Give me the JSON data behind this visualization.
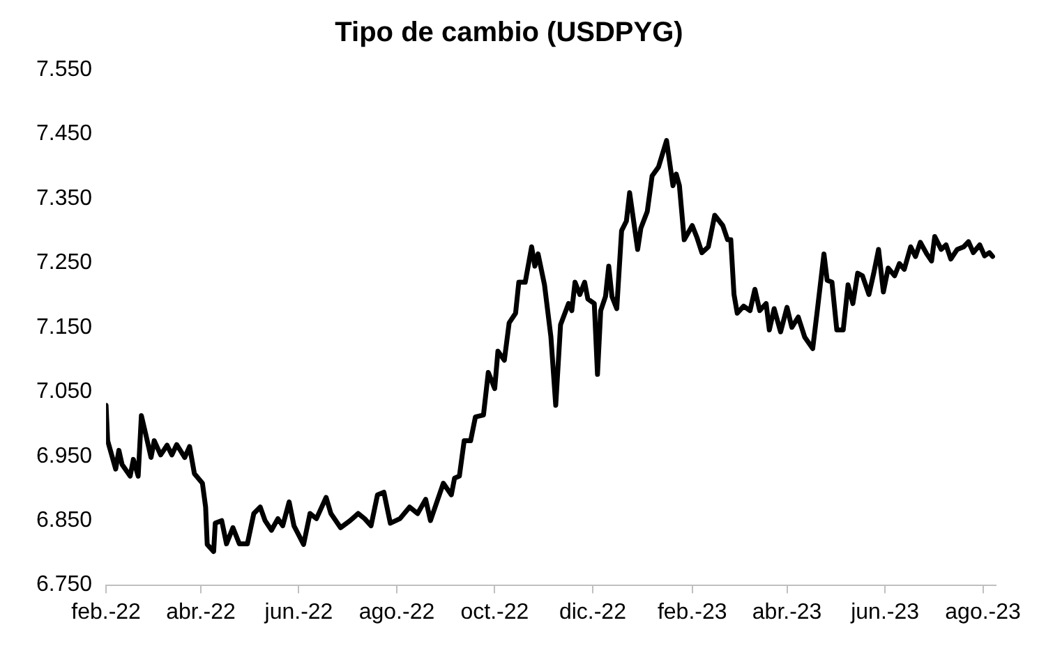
{
  "chart_data": {
    "type": "line",
    "title": "Tipo de cambio (USDPYG)",
    "x": [
      "2022-02-01",
      "2022-02-02",
      "2022-02-07",
      "2022-02-09",
      "2022-02-11",
      "2022-02-16",
      "2022-02-18",
      "2022-02-21",
      "2022-02-23",
      "2022-02-26",
      "2022-03-01",
      "2022-03-03",
      "2022-03-07",
      "2022-03-11",
      "2022-03-14",
      "2022-03-17",
      "2022-03-22",
      "2022-03-25",
      "2022-03-28",
      "2022-04-02",
      "2022-04-04",
      "2022-04-05",
      "2022-04-09",
      "2022-04-10",
      "2022-04-14",
      "2022-04-17",
      "2022-04-21",
      "2022-04-25",
      "2022-04-30",
      "2022-05-04",
      "2022-05-08",
      "2022-05-11",
      "2022-05-15",
      "2022-05-19",
      "2022-05-22",
      "2022-05-26",
      "2022-05-29",
      "2022-06-04",
      "2022-06-08",
      "2022-06-12",
      "2022-06-18",
      "2022-06-21",
      "2022-06-27",
      "2022-07-03",
      "2022-07-08",
      "2022-07-12",
      "2022-07-16",
      "2022-07-20",
      "2022-07-24",
      "2022-07-28",
      "2022-08-03",
      "2022-08-09",
      "2022-08-14",
      "2022-08-19",
      "2022-08-22",
      "2022-08-30",
      "2022-09-04",
      "2022-09-06",
      "2022-09-09",
      "2022-09-12",
      "2022-09-16",
      "2022-09-19",
      "2022-09-24",
      "2022-09-27",
      "2022-10-01",
      "2022-10-03",
      "2022-10-07",
      "2022-10-10",
      "2022-10-14",
      "2022-10-16",
      "2022-10-20",
      "2022-10-24",
      "2022-10-26",
      "2022-10-28",
      "2022-11-01",
      "2022-11-05",
      "2022-11-08",
      "2022-11-11",
      "2022-11-16",
      "2022-11-18",
      "2022-11-20",
      "2022-11-23",
      "2022-11-26",
      "2022-11-28",
      "2022-12-02",
      "2022-12-04",
      "2022-12-06",
      "2022-12-09",
      "2022-12-11",
      "2022-12-13",
      "2022-12-16",
      "2022-12-19",
      "2022-12-22",
      "2022-12-24",
      "2022-12-29",
      "2022-12-31",
      "2023-01-04",
      "2023-01-07",
      "2023-01-11",
      "2023-01-16",
      "2023-01-20",
      "2023-01-22",
      "2023-01-24",
      "2023-01-27",
      "2023-02-01",
      "2023-02-04",
      "2023-02-07",
      "2023-02-11",
      "2023-02-15",
      "2023-02-20",
      "2023-02-23",
      "2023-02-25",
      "2023-02-27",
      "2023-03-01",
      "2023-03-05",
      "2023-03-09",
      "2023-03-12",
      "2023-03-15",
      "2023-03-19",
      "2023-03-21",
      "2023-03-24",
      "2023-03-28",
      "2023-04-01",
      "2023-04-04",
      "2023-04-08",
      "2023-04-12",
      "2023-04-17",
      "2023-04-20",
      "2023-04-24",
      "2023-04-26",
      "2023-04-29",
      "2023-05-02",
      "2023-05-06",
      "2023-05-09",
      "2023-05-12",
      "2023-05-15",
      "2023-05-18",
      "2023-05-22",
      "2023-05-25",
      "2023-05-28",
      "2023-05-31",
      "2023-06-03",
      "2023-06-07",
      "2023-06-10",
      "2023-06-13",
      "2023-06-17",
      "2023-06-20",
      "2023-06-23",
      "2023-06-27",
      "2023-06-30",
      "2023-07-02",
      "2023-07-06",
      "2023-07-09",
      "2023-07-12",
      "2023-07-16",
      "2023-07-20",
      "2023-07-23",
      "2023-07-26",
      "2023-07-30",
      "2023-08-02",
      "2023-08-05",
      "2023-08-07"
    ],
    "series": [
      {
        "color": "#000000",
        "values": [
          7029,
          6974,
          6930,
          6959,
          6937,
          6919,
          6945,
          6919,
          7013,
          6981,
          6948,
          6974,
          6952,
          6967,
          6952,
          6968,
          6948,
          6965,
          6923,
          6908,
          6871,
          6813,
          6802,
          6846,
          6850,
          6814,
          6839,
          6814,
          6814,
          6861,
          6871,
          6850,
          6835,
          6853,
          6842,
          6879,
          6842,
          6813,
          6861,
          6853,
          6886,
          6861,
          6839,
          6850,
          6861,
          6853,
          6842,
          6890,
          6894,
          6846,
          6853,
          6871,
          6861,
          6883,
          6850,
          6908,
          6890,
          6916,
          6919,
          6974,
          6974,
          7011,
          7014,
          7080,
          7055,
          7113,
          7099,
          7157,
          7172,
          7220,
          7220,
          7275,
          7245,
          7264,
          7216,
          7135,
          7029,
          7154,
          7187,
          7176,
          7220,
          7201,
          7220,
          7194,
          7187,
          7077,
          7176,
          7198,
          7245,
          7198,
          7179,
          7300,
          7315,
          7359,
          7271,
          7304,
          7330,
          7385,
          7399,
          7440,
          7370,
          7388,
          7370,
          7286,
          7308,
          7289,
          7266,
          7275,
          7324,
          7308,
          7286,
          7286,
          7201,
          7172,
          7183,
          7176,
          7209,
          7176,
          7187,
          7146,
          7179,
          7143,
          7181,
          7150,
          7166,
          7135,
          7117,
          7179,
          7264,
          7223,
          7220,
          7146,
          7146,
          7216,
          7187,
          7234,
          7230,
          7201,
          7234,
          7271,
          7205,
          7242,
          7230,
          7249,
          7240,
          7275,
          7260,
          7282,
          7264,
          7253,
          7291,
          7271,
          7278,
          7256,
          7271,
          7275,
          7283,
          7266,
          7278,
          7261,
          7266,
          7260
        ]
      }
    ],
    "xlim": [
      "2022-02-01",
      "2023-08-09"
    ],
    "xticks": [
      {
        "value": "2022-02-01",
        "label": "feb.-22"
      },
      {
        "value": "2022-04-01",
        "label": "abr.-22"
      },
      {
        "value": "2022-06-01",
        "label": "jun.-22"
      },
      {
        "value": "2022-08-01",
        "label": "ago.-22"
      },
      {
        "value": "2022-10-01",
        "label": "oct.-22"
      },
      {
        "value": "2022-12-01",
        "label": "dic.-22"
      },
      {
        "value": "2023-02-01",
        "label": "feb.-23"
      },
      {
        "value": "2023-04-01",
        "label": "abr.-23"
      },
      {
        "value": "2023-06-01",
        "label": "jun.-23"
      },
      {
        "value": "2023-08-01",
        "label": "ago.-23"
      }
    ],
    "ylim": [
      6750,
      7550
    ],
    "yticks": [
      {
        "value": 6750,
        "label": "6.750"
      },
      {
        "value": 6850,
        "label": "6.850"
      },
      {
        "value": 6950,
        "label": "6.950"
      },
      {
        "value": 7050,
        "label": "7.050"
      },
      {
        "value": 7150,
        "label": "7.150"
      },
      {
        "value": 7250,
        "label": "7.250"
      },
      {
        "value": 7350,
        "label": "7.350"
      },
      {
        "value": 7450,
        "label": "7.450"
      },
      {
        "value": 7550,
        "label": "7.550"
      }
    ],
    "grid": false,
    "legend": false,
    "marker": "none",
    "line_style": "solid"
  }
}
